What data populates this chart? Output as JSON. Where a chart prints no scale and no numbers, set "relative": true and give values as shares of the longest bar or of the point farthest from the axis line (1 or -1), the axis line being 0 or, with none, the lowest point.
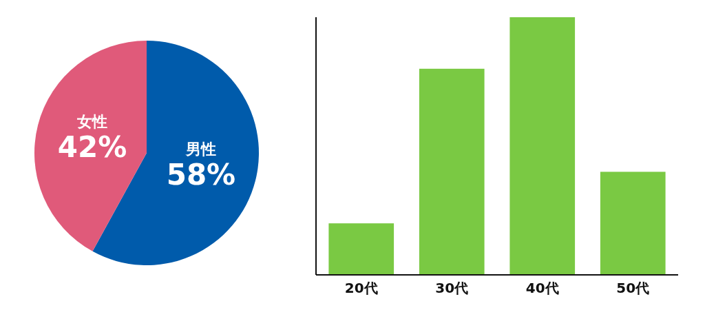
{
  "chart_data": [
    {
      "type": "pie",
      "categories": [
        "男性",
        "女性"
      ],
      "values": [
        58,
        42
      ],
      "colors": [
        "#005bab",
        "#e05a7a"
      ],
      "value_labels": [
        "58%",
        "42%"
      ]
    },
    {
      "type": "bar",
      "categories": [
        "20代",
        "30代",
        "40代",
        "50代"
      ],
      "values": [
        0.2,
        0.8,
        1,
        0.4
      ],
      "color": "#7ac943",
      "relative": true
    }
  ]
}
